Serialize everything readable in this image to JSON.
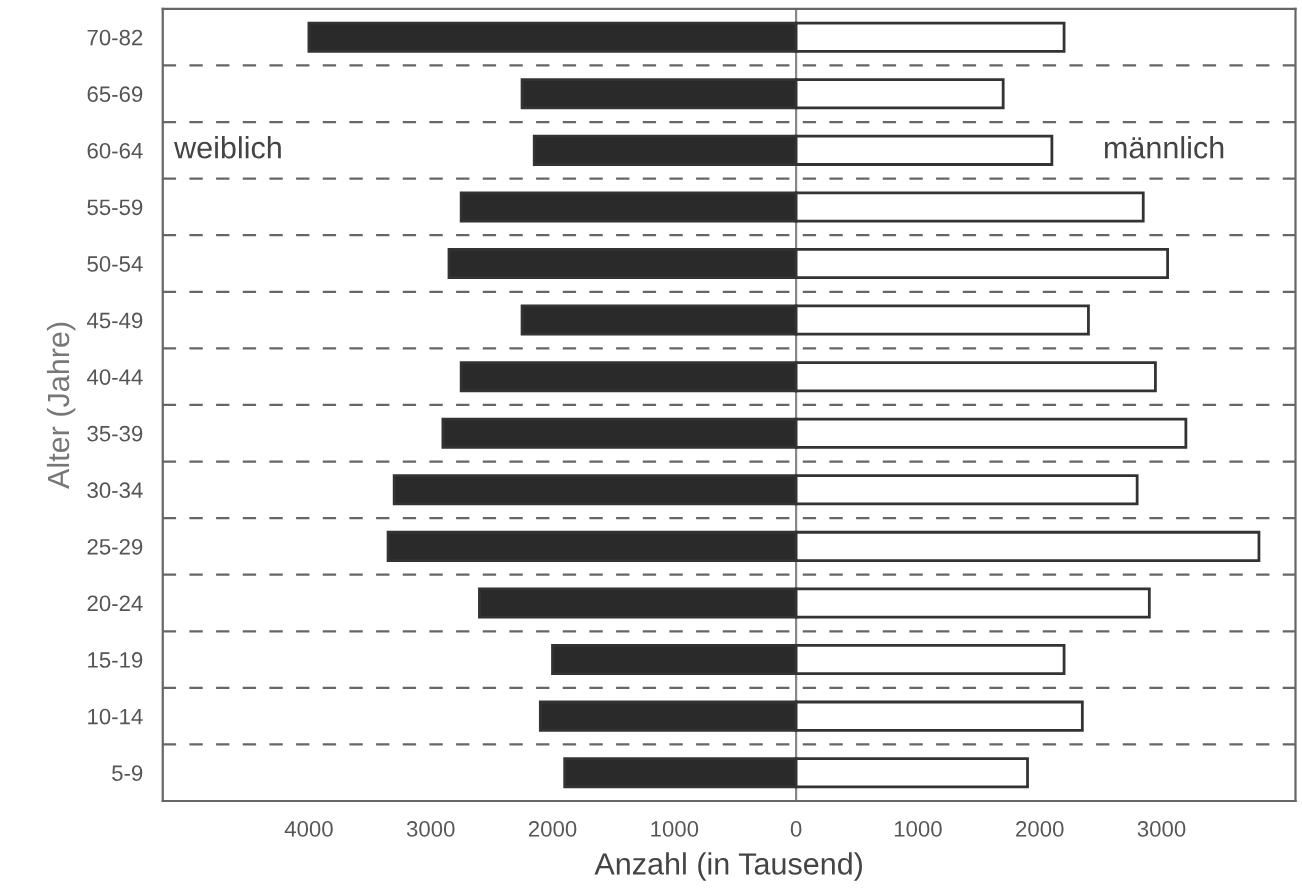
{
  "chart_data": {
    "type": "bar",
    "orientation": "horizontal",
    "stacked": true,
    "xlabel": "Anzahl (in Tausend)",
    "ylabel": "Alter (Jahre)",
    "categories": [
      "70-82",
      "65-69",
      "60-64",
      "55-59",
      "50-54",
      "45-49",
      "40-44",
      "35-39",
      "30-34",
      "25-29",
      "20-24",
      "15-19",
      "10-14",
      "5-9"
    ],
    "series": [
      {
        "name": "weiblich",
        "color": "#2a2a2a",
        "values": [
          -4000,
          -2250,
          -2150,
          -2750,
          -2850,
          -2250,
          -2750,
          -2900,
          -3300,
          -3350,
          -2600,
          -2000,
          -2100,
          -1900
        ]
      },
      {
        "name": "männlich",
        "color": "#ffffff",
        "values": [
          2200,
          1700,
          2100,
          2850,
          3050,
          2400,
          2950,
          3200,
          2800,
          3800,
          2900,
          2200,
          2350,
          1900
        ]
      }
    ],
    "xlim": [
      -5200,
      4100
    ],
    "xticks": [
      {
        "value": -4000,
        "label": "4000"
      },
      {
        "value": -3000,
        "label": "3000"
      },
      {
        "value": -2000,
        "label": "2000"
      },
      {
        "value": -1000,
        "label": "1000"
      },
      0,
      1000,
      2000,
      3000
    ],
    "grid": "y",
    "legend": false
  }
}
